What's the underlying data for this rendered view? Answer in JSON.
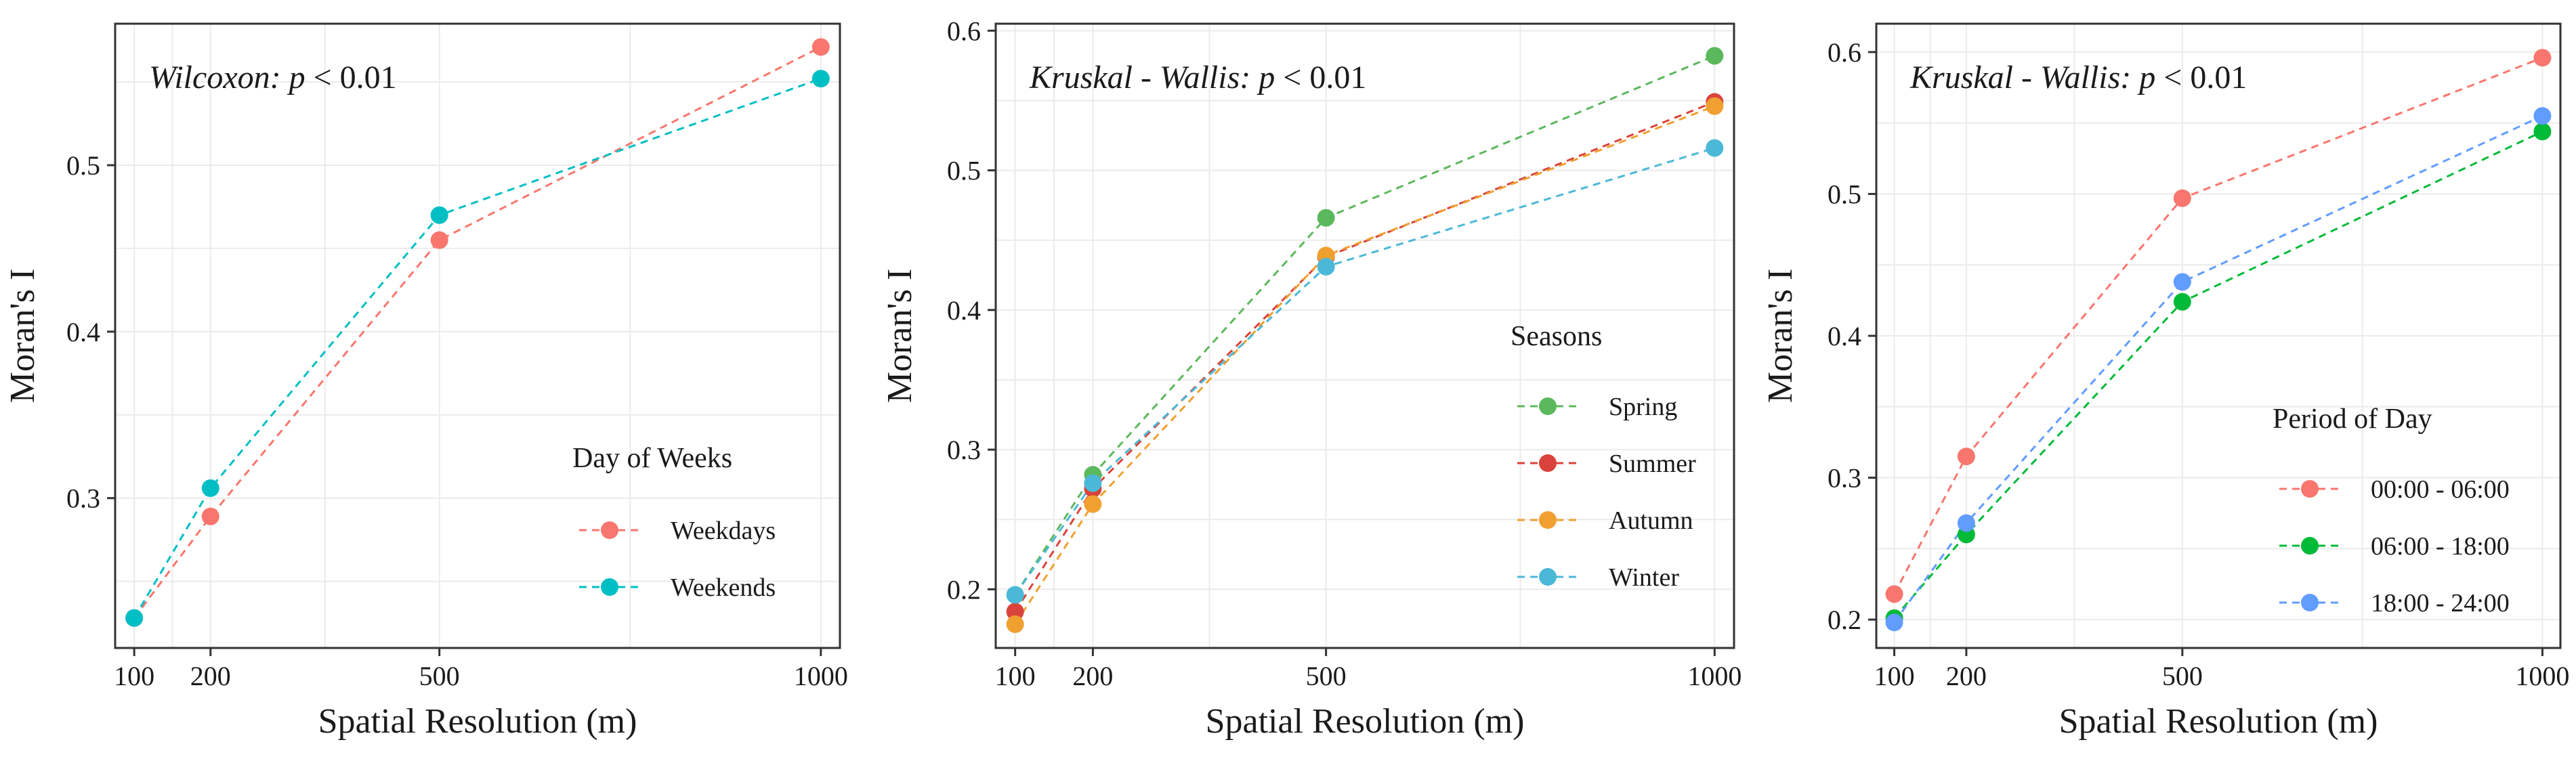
{
  "chart_data": [
    {
      "type": "line",
      "annotation": {
        "prefix": "Wilcoxon: ",
        "p": "p",
        "suffix": " < 0.01"
      },
      "xlabel": "Spatial Resolution (m)",
      "ylabel": "Moran's I",
      "x": [
        100,
        200,
        500,
        1000
      ],
      "xticks": [
        "100",
        "200",
        "500",
        "1000"
      ],
      "xlim": [
        75,
        1025
      ],
      "yticks": [
        0.3,
        0.4,
        0.5
      ],
      "ytick_labels": [
        "0.3",
        "0.4",
        "0.5"
      ],
      "ylim": [
        0.21,
        0.585
      ],
      "legend": {
        "title": "Day of Weeks",
        "position": "bottom-right"
      },
      "series": [
        {
          "name": "Weekdays",
          "color": "#F8766D",
          "values": [
            0.228,
            0.289,
            0.455,
            0.571
          ]
        },
        {
          "name": "Weekends",
          "color": "#00BFC4",
          "values": [
            0.228,
            0.306,
            0.47,
            0.552
          ]
        }
      ]
    },
    {
      "type": "line",
      "annotation": {
        "prefix": "Kruskal - Wallis: ",
        "p": "p",
        "suffix": " < 0.01"
      },
      "xlabel": "Spatial Resolution (m)",
      "ylabel": "Moran's I",
      "x": [
        100,
        200,
        500,
        1000
      ],
      "xticks": [
        "100",
        "200",
        "500",
        "1000"
      ],
      "xlim": [
        75,
        1025
      ],
      "yticks": [
        0.2,
        0.3,
        0.4,
        0.5,
        0.6
      ],
      "ytick_labels": [
        "0.2",
        "0.3",
        "0.4",
        "0.5",
        "0.6"
      ],
      "ylim": [
        0.158,
        0.605
      ],
      "legend": {
        "title": "Seasons",
        "position": "right"
      },
      "series": [
        {
          "name": "Spring",
          "color": "#5CB85C",
          "values": [
            0.196,
            0.282,
            0.466,
            0.582
          ]
        },
        {
          "name": "Summer",
          "color": "#D9433B",
          "values": [
            0.184,
            0.272,
            0.438,
            0.549
          ]
        },
        {
          "name": "Autumn",
          "color": "#F0A030",
          "values": [
            0.175,
            0.261,
            0.439,
            0.546
          ]
        },
        {
          "name": "Winter",
          "color": "#4CB8D8",
          "values": [
            0.196,
            0.276,
            0.431,
            0.516
          ]
        }
      ]
    },
    {
      "type": "line",
      "annotation": {
        "prefix": "Kruskal - Wallis: ",
        "p": "p",
        "suffix": " < 0.01"
      },
      "xlabel": "Spatial Resolution (m)",
      "ylabel": "Moran's I",
      "x": [
        100,
        200,
        500,
        1000
      ],
      "xticks": [
        "100",
        "200",
        "500",
        "1000"
      ],
      "xlim": [
        75,
        1025
      ],
      "yticks": [
        0.2,
        0.3,
        0.4,
        0.5,
        0.6
      ],
      "ytick_labels": [
        "0.2",
        "0.3",
        "0.4",
        "0.5",
        "0.6"
      ],
      "ylim": [
        0.18,
        0.62
      ],
      "legend": {
        "title": "Period of Day",
        "position": "bottom-right"
      },
      "series": [
        {
          "name": "00:00 - 06:00",
          "color": "#F8766D",
          "values": [
            0.218,
            0.315,
            0.497,
            0.596
          ]
        },
        {
          "name": "06:00 - 18:00",
          "color": "#00BA38",
          "values": [
            0.201,
            0.26,
            0.424,
            0.544
          ]
        },
        {
          "name": "18:00 - 24:00",
          "color": "#619CFF",
          "values": [
            0.198,
            0.268,
            0.438,
            0.555
          ]
        }
      ]
    }
  ]
}
